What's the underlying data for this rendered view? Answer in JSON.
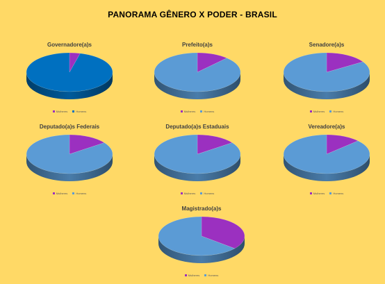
{
  "page": {
    "title": "PANORAMA GÊNERO X PODER - BRASIL",
    "background": "#FFD966"
  },
  "legend_labels": {
    "women": "Mulheres",
    "men": "Homens"
  },
  "colors": {
    "women": "#9B30C0",
    "men_default": "#5B9BD5",
    "men_governor": "#0070C0"
  },
  "chart_data": [
    {
      "type": "pie",
      "title": "Governadore(a)s",
      "categories": [
        "Mulheres",
        "Homens"
      ],
      "values": [
        4,
        96
      ],
      "men_color": "#0070C0"
    },
    {
      "type": "pie",
      "title": "Prefeito(a)s",
      "categories": [
        "Mulheres",
        "Homens"
      ],
      "values": [
        12,
        88
      ],
      "men_color": "#5B9BD5"
    },
    {
      "type": "pie",
      "title": "Senadore(a)s",
      "categories": [
        "Mulheres",
        "Homens"
      ],
      "values": [
        16,
        84
      ],
      "men_color": "#5B9BD5"
    },
    {
      "type": "pie",
      "title": "Deputado(a)s Federais",
      "categories": [
        "Mulheres",
        "Homens"
      ],
      "values": [
        15,
        85
      ],
      "men_color": "#5B9BD5"
    },
    {
      "type": "pie",
      "title": "Deputado(a)s Estaduais",
      "categories": [
        "Mulheres",
        "Homens"
      ],
      "values": [
        15,
        85
      ],
      "men_color": "#5B9BD5"
    },
    {
      "type": "pie",
      "title": "Vereadore(a)s",
      "categories": [
        "Mulheres",
        "Homens"
      ],
      "values": [
        13,
        87
      ],
      "men_color": "#5B9BD5"
    },
    {
      "type": "pie",
      "title": "Magistrado(a)s",
      "categories": [
        "Mulheres",
        "Homens"
      ],
      "values": [
        36,
        64
      ],
      "men_color": "#5B9BD5"
    }
  ]
}
